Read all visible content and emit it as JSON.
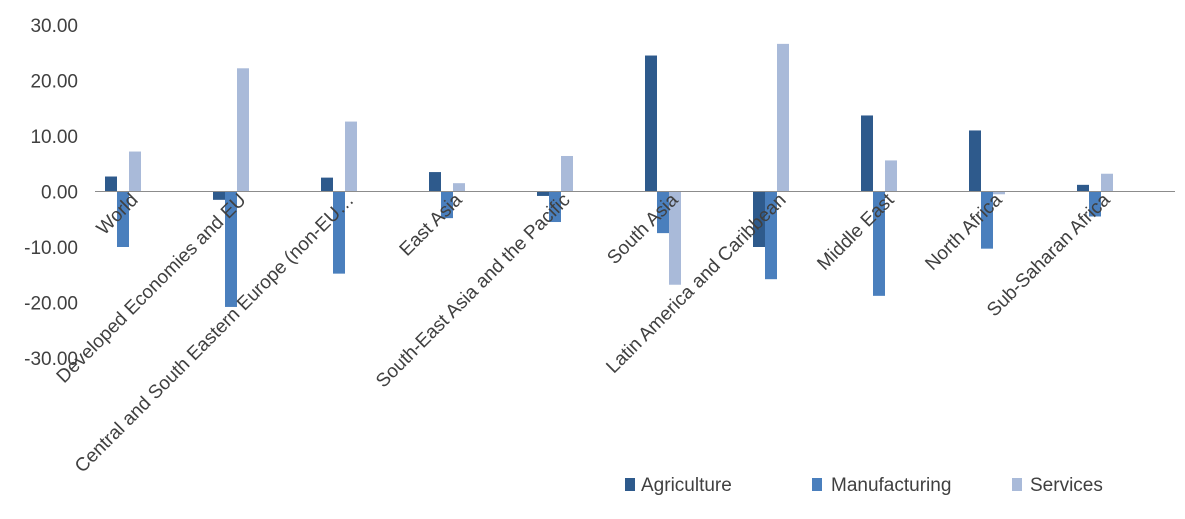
{
  "chart_data": {
    "type": "bar",
    "categories": [
      "World",
      "Developed Economies and EU",
      "Central and South Eastern Europe (non-EU…",
      "East Asia",
      "South-East Asia and the Pacific",
      "South Asia",
      "Latin America and Caribbean",
      "Middle East",
      "North Africa",
      "Sub-Saharan Africa"
    ],
    "series": [
      {
        "name": "Agriculture",
        "color": "#2E5A8C",
        "values": [
          2.7,
          -1.5,
          2.5,
          3.5,
          -0.8,
          24.5,
          -10.0,
          13.7,
          11.0,
          1.2
        ]
      },
      {
        "name": "Manufacturing",
        "color": "#4A7FBD",
        "values": [
          -10.0,
          -20.8,
          -14.8,
          -4.8,
          -5.5,
          -7.5,
          -15.8,
          -18.8,
          -10.3,
          -4.5
        ]
      },
      {
        "name": "Services",
        "color": "#A9BAD9",
        "values": [
          7.2,
          22.2,
          12.6,
          1.5,
          6.4,
          -16.8,
          26.6,
          5.6,
          -0.5,
          3.2
        ]
      }
    ],
    "ylim": [
      -30,
      30
    ],
    "yticks": [
      "30.00",
      "20.00",
      "10.00",
      "0.00",
      "-10.00",
      "-20.00",
      "-30.00"
    ],
    "legend_position": "bottom-right",
    "grid": false
  }
}
